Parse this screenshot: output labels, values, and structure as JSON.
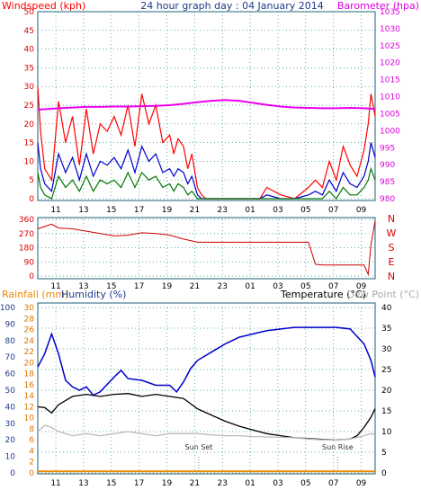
{
  "chart_data": [
    {
      "type": "line",
      "title": "24 hour graph day : 04 January 2014",
      "ylabel_left": "Windspeed (kph)",
      "ylabel_right": "Barometer (hpa)",
      "left_ticks": [
        "50",
        "45",
        "40",
        "35",
        "30",
        "25",
        "20",
        "15",
        "10",
        "5",
        "0"
      ],
      "right_ticks": [
        "1035",
        "1030",
        "1025",
        "1020",
        "1015",
        "1010",
        "1005",
        "1000",
        "995",
        "990",
        "985",
        "980"
      ],
      "ylim_left": [
        0,
        50
      ],
      "ylim_right": [
        980,
        1035
      ],
      "x_ticks": [
        "11",
        "13",
        "15",
        "17",
        "19",
        "21",
        "23",
        "01",
        "03",
        "05",
        "07",
        "09"
      ],
      "grid": true,
      "colors": {
        "gust": "#ff0000",
        "avg": "#0000cc",
        "low": "#007700",
        "baro": "#ee00ee"
      },
      "series": [
        {
          "key": "gust",
          "x": [
            9.5,
            9.7,
            10,
            10.5,
            11,
            11.5,
            12,
            12.5,
            13,
            13.5,
            14,
            14.5,
            15,
            15.5,
            16,
            16.5,
            17,
            17.5,
            18,
            18.5,
            19,
            19.3,
            19.6,
            20,
            20.3,
            20.6,
            21,
            21.3,
            21.6,
            22,
            23,
            24,
            25,
            25.5,
            26,
            27,
            28,
            29,
            29.5,
            30,
            30.5,
            31,
            31.5,
            32,
            32.5,
            33,
            33.3,
            33.5,
            33.8
          ],
          "values": [
            30,
            18,
            8,
            5,
            26,
            15,
            22,
            9,
            24,
            12,
            20,
            18,
            22,
            17,
            25,
            14,
            28,
            20,
            25,
            15,
            17,
            12,
            16,
            14,
            8,
            12,
            3,
            1,
            0,
            0,
            0,
            0,
            0,
            0,
            3,
            1,
            0,
            3,
            5,
            3,
            10,
            5,
            14,
            9,
            6,
            13,
            20,
            28,
            22
          ]
        },
        {
          "key": "avg",
          "x": [
            9.5,
            9.7,
            10,
            10.5,
            11,
            11.5,
            12,
            12.5,
            13,
            13.5,
            14,
            14.5,
            15,
            15.5,
            16,
            16.5,
            17,
            17.5,
            18,
            18.5,
            19,
            19.3,
            19.6,
            20,
            20.3,
            20.6,
            21,
            21.3,
            21.6,
            22,
            23,
            24,
            25,
            25.5,
            26,
            27,
            28,
            29,
            29.5,
            30,
            30.5,
            31,
            31.5,
            32,
            32.5,
            33,
            33.3,
            33.5,
            33.8
          ],
          "values": [
            15,
            8,
            4,
            2,
            12,
            7,
            11,
            5,
            12,
            6,
            10,
            9,
            11,
            8,
            13,
            7,
            14,
            10,
            12,
            7,
            8,
            6,
            8,
            7,
            4,
            6,
            1,
            0,
            0,
            0,
            0,
            0,
            0,
            0,
            1,
            0,
            0,
            1,
            2,
            1,
            5,
            2,
            7,
            4,
            3,
            6,
            10,
            15,
            11
          ]
        },
        {
          "key": "low",
          "x": [
            9.5,
            9.7,
            10,
            10.5,
            11,
            11.5,
            12,
            12.5,
            13,
            13.5,
            14,
            14.5,
            15,
            15.5,
            16,
            16.5,
            17,
            17.5,
            18,
            18.5,
            19,
            19.3,
            19.6,
            20,
            20.3,
            20.6,
            21,
            21.3,
            21.6,
            22,
            23,
            24,
            25,
            25.5,
            26,
            27,
            28,
            29,
            29.5,
            30,
            30.5,
            31,
            31.5,
            32,
            32.5,
            33,
            33.3,
            33.5,
            33.8
          ],
          "values": [
            7,
            3,
            1,
            0,
            6,
            3,
            5,
            2,
            6,
            2,
            5,
            4,
            5,
            3,
            7,
            3,
            7,
            5,
            6,
            3,
            4,
            2,
            4,
            3,
            1,
            2,
            0,
            0,
            0,
            0,
            0,
            0,
            0,
            0,
            0,
            0,
            0,
            0,
            0,
            0,
            2,
            0,
            3,
            1,
            1,
            3,
            5,
            8,
            5
          ]
        },
        {
          "key": "baro",
          "x": [
            9.5,
            10,
            11,
            12,
            13,
            14,
            15,
            16,
            17,
            18,
            19,
            20,
            21,
            22,
            23,
            24,
            25,
            26,
            27,
            28,
            29,
            30,
            31,
            32,
            33,
            33.8
          ],
          "values": [
            1006.2,
            1006.3,
            1006.6,
            1006.8,
            1007.0,
            1007.0,
            1007.1,
            1007.1,
            1007.2,
            1007.3,
            1007.5,
            1007.9,
            1008.4,
            1008.8,
            1009.0,
            1008.8,
            1008.2,
            1007.6,
            1007.1,
            1006.8,
            1006.7,
            1006.6,
            1006.6,
            1006.7,
            1006.6,
            1006.4
          ]
        }
      ]
    },
    {
      "type": "line",
      "left_ticks": [
        "360",
        "270",
        "180",
        "90",
        "0"
      ],
      "ylim": [
        0,
        360
      ],
      "compass_labels": [
        "N",
        "W",
        "S",
        "E",
        "N"
      ],
      "x_ticks": [
        "11",
        "13",
        "15",
        "17",
        "19",
        "21",
        "23",
        "01",
        "03",
        "05",
        "07",
        "09"
      ],
      "grid": true,
      "series": [
        {
          "key": "direction",
          "color": "#cc0000",
          "x": [
            9.5,
            10,
            10.5,
            11,
            12,
            13,
            14,
            15,
            16,
            17,
            18,
            19,
            20,
            20.5,
            21,
            22,
            23,
            24,
            25,
            26,
            27,
            28,
            29,
            29.5,
            30,
            31,
            32,
            33,
            33.3,
            33.5,
            33.8
          ],
          "values": [
            300,
            315,
            330,
            305,
            300,
            285,
            270,
            255,
            260,
            275,
            270,
            260,
            235,
            225,
            215,
            215,
            215,
            215,
            215,
            215,
            215,
            215,
            215,
            75,
            70,
            70,
            70,
            70,
            10,
            200,
            350
          ]
        }
      ]
    },
    {
      "type": "line",
      "ylabel_left_1": "Rainfall (mm)",
      "ylabel_left_2": "Humidity (%)",
      "ylabel_right_1": "Temperature (°C)",
      "ylabel_right_2": "Dew Point (°C)",
      "humidity_ticks": [
        "100",
        "90",
        "80",
        "70",
        "60",
        "50",
        "40",
        "30",
        "20",
        "10",
        "0"
      ],
      "rain_ticks": [
        "30",
        "28",
        "26",
        "24",
        "22",
        "20",
        "18",
        "16",
        "14",
        "12",
        "10",
        "8",
        "6",
        "4",
        "2",
        "0"
      ],
      "temp_ticks": [
        "40",
        "35",
        "30",
        "25",
        "20",
        "15",
        "10",
        "5",
        "0"
      ],
      "ylim_humidity": [
        0,
        100
      ],
      "ylim_temp": [
        0,
        40
      ],
      "x_ticks": [
        "11",
        "13",
        "15",
        "17",
        "19",
        "21",
        "23",
        "01",
        "03",
        "05",
        "07",
        "09"
      ],
      "grid": true,
      "annotations": [
        {
          "text": "Sun Set",
          "x": 21.1
        },
        {
          "text": "Sun Rise",
          "x": 31.1
        }
      ],
      "colors": {
        "humidity": "#0000cc",
        "temp": "#000000",
        "dew": "#bbbbbb",
        "rain": "#ee8800"
      },
      "series": [
        {
          "key": "humidity",
          "x": [
            9.5,
            10,
            10.5,
            11,
            11.5,
            12,
            12.5,
            13,
            13.5,
            14,
            15,
            15.5,
            16,
            17,
            18,
            19,
            19.5,
            20,
            20.5,
            21,
            22,
            23,
            24,
            25,
            26,
            27,
            28,
            29,
            30,
            31,
            32,
            33,
            33.5,
            33.8
          ],
          "values": [
            64,
            72,
            84,
            72,
            56,
            52,
            50,
            52,
            47,
            49,
            58,
            62,
            57,
            56,
            53,
            53,
            49,
            55,
            63,
            68,
            73,
            78,
            82,
            84,
            86,
            87,
            88,
            88,
            88,
            88,
            87,
            78,
            68,
            58
          ]
        },
        {
          "key": "temp",
          "x": [
            9.5,
            10,
            10.5,
            11,
            12,
            13,
            14,
            15,
            16,
            17,
            18,
            19,
            20,
            21,
            22,
            23,
            24,
            25,
            26,
            27,
            28,
            29,
            30,
            31,
            32,
            32.5,
            33,
            33.5,
            33.8
          ],
          "values": [
            16,
            15.8,
            14.5,
            16.5,
            18.5,
            19,
            18.5,
            19,
            19.2,
            18.5,
            19,
            18.5,
            18,
            15.5,
            14,
            12.5,
            11.3,
            10.4,
            9.5,
            9,
            8.5,
            8.3,
            8.1,
            8,
            8.2,
            9,
            11,
            13.5,
            15.5
          ]
        },
        {
          "key": "dew",
          "x": [
            9.5,
            10,
            10.5,
            11,
            12,
            13,
            14,
            15,
            16,
            17,
            18,
            19,
            20,
            21,
            22,
            23,
            24,
            25,
            26,
            27,
            28,
            29,
            30,
            31,
            32,
            33,
            33.5,
            33.8
          ],
          "values": [
            10,
            11.5,
            11,
            10,
            9,
            9.5,
            9,
            9.5,
            10,
            9.5,
            9,
            9.5,
            9.5,
            9.5,
            9.2,
            9,
            9,
            8.8,
            8.7,
            8.6,
            8.5,
            8.2,
            8,
            8,
            8.2,
            9,
            9.5,
            9.2
          ]
        },
        {
          "key": "rain",
          "x": [
            9.5,
            33.8
          ],
          "values": [
            0.3,
            0.3
          ]
        }
      ]
    }
  ]
}
